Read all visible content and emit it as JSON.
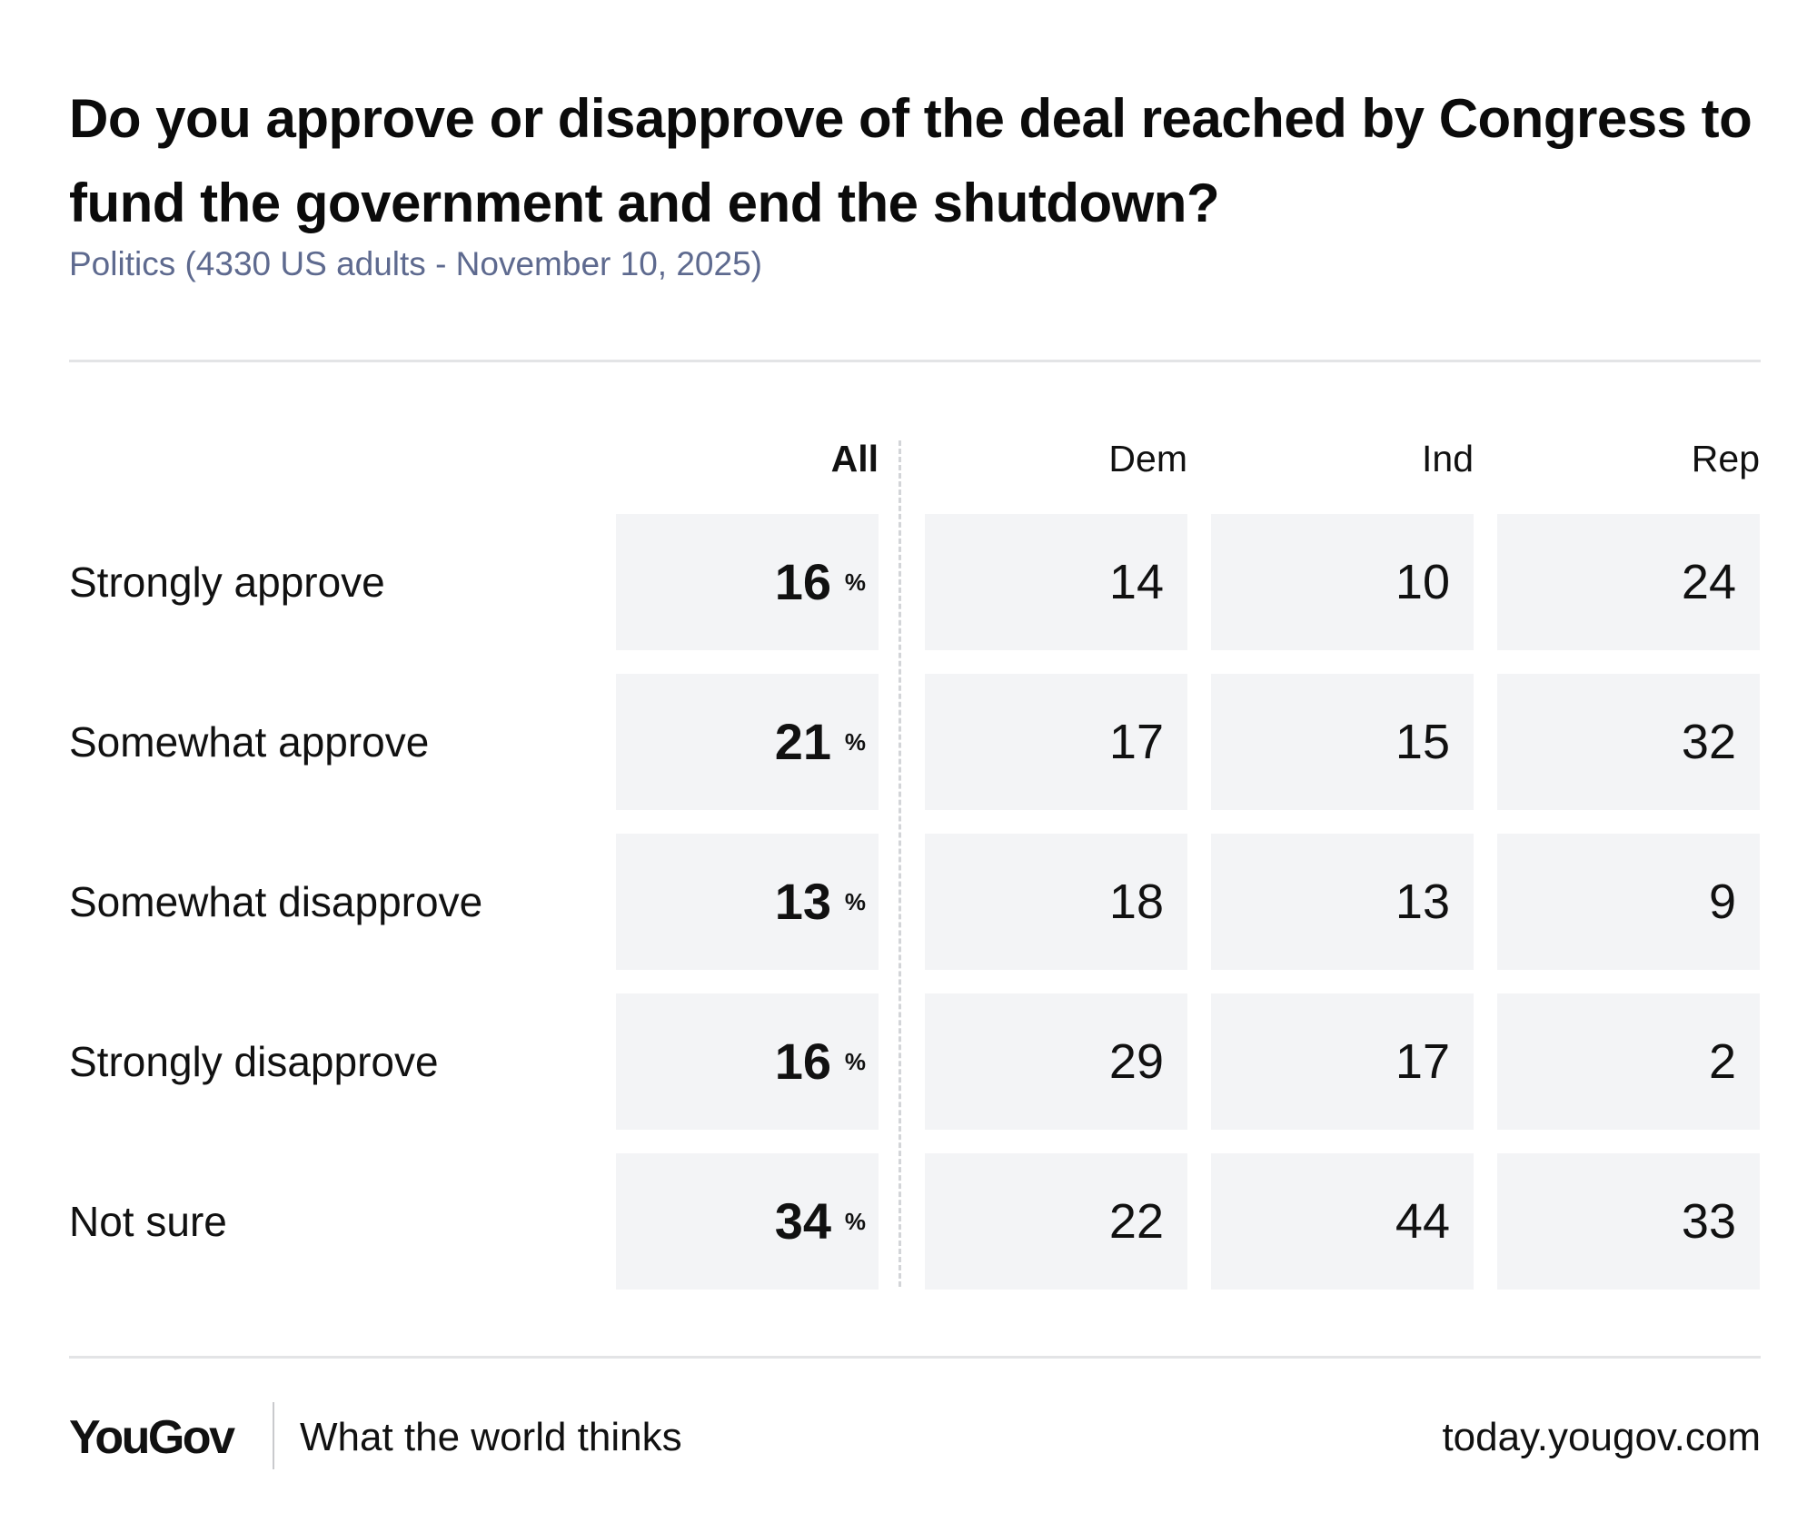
{
  "chart_data": {
    "type": "table",
    "title": "Do you approve or disapprove of the deal reached by Congress to fund the government and end the shutdown?",
    "subtitle": "Politics (4330 US adults - November 10, 2025)",
    "columns": [
      "All",
      "Dem",
      "Ind",
      "Rep"
    ],
    "unit": "%",
    "rows": [
      {
        "label": "Strongly approve",
        "values": [
          16,
          14,
          10,
          24
        ]
      },
      {
        "label": "Somewhat approve",
        "values": [
          21,
          17,
          15,
          32
        ]
      },
      {
        "label": "Somewhat disapprove",
        "values": [
          13,
          18,
          13,
          9
        ]
      },
      {
        "label": "Strongly disapprove",
        "values": [
          16,
          29,
          17,
          2
        ]
      },
      {
        "label": "Not sure",
        "values": [
          34,
          22,
          44,
          33
        ]
      }
    ]
  },
  "footer": {
    "logo": "YouGov",
    "tagline": "What the world thinks",
    "site": "today.yougov.com"
  },
  "colors": {
    "subtitle": "#5e6a8f",
    "cell_background": "#f3f4f6",
    "rule": "#e3e4e6",
    "text": "#111111"
  }
}
